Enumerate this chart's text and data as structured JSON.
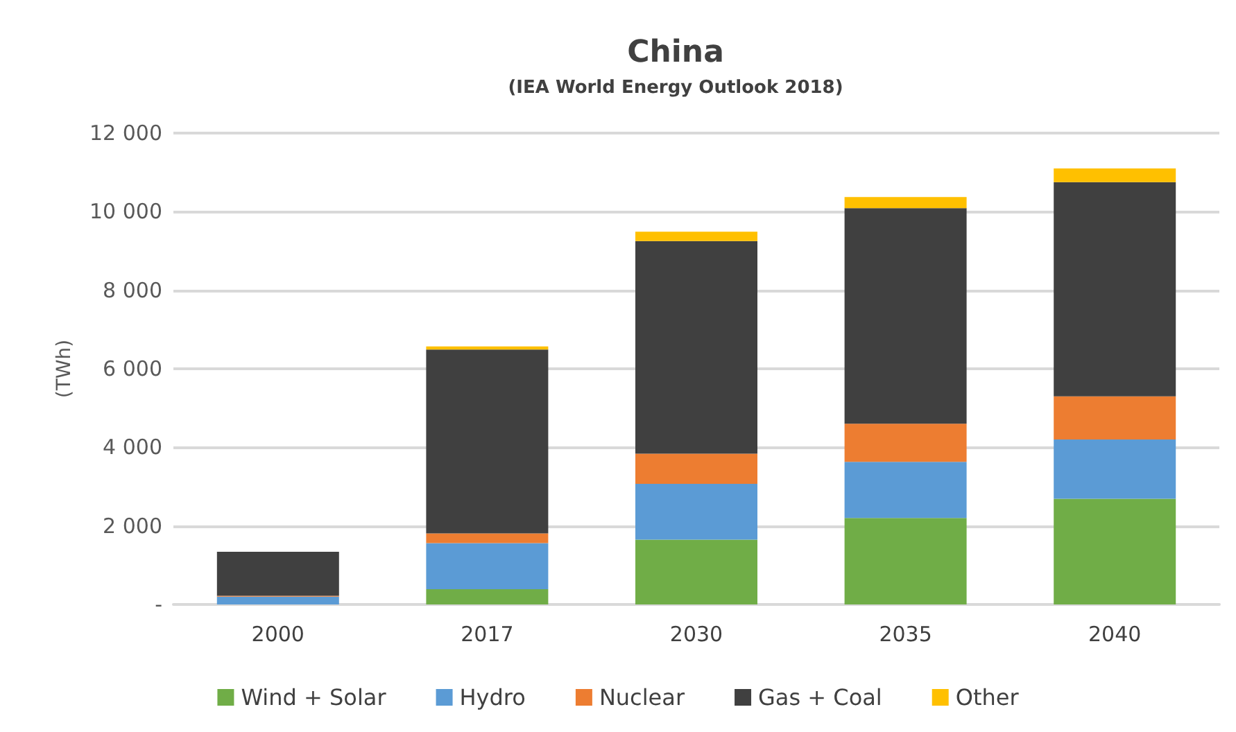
{
  "chart_data": {
    "type": "bar",
    "title": "China",
    "subtitle": "(IEA World Energy Outlook 2018)",
    "ylabel": "(TWh)",
    "categories": [
      "2000",
      "2017",
      "2030",
      "2035",
      "2040"
    ],
    "series": [
      {
        "name": "Wind + Solar",
        "color": "#70ad47",
        "values": [
          0,
          390,
          1650,
          2200,
          2690
        ]
      },
      {
        "name": "Hydro",
        "color": "#5b9bd5",
        "values": [
          200,
          1170,
          1420,
          1430,
          1510
        ]
      },
      {
        "name": "Nuclear",
        "color": "#ed7d31",
        "values": [
          20,
          250,
          770,
          970,
          1100
        ]
      },
      {
        "name": "Gas + Coal",
        "color": "#404040",
        "values": [
          1120,
          4680,
          5410,
          5490,
          5450
        ]
      },
      {
        "name": "Other",
        "color": "#ffc000",
        "values": [
          0,
          80,
          240,
          280,
          350
        ]
      }
    ],
    "stacked": true,
    "ylim": [
      0,
      12000
    ],
    "yticks": [
      {
        "value": 0,
        "label": "-"
      },
      {
        "value": 2000,
        "label": "2 000"
      },
      {
        "value": 4000,
        "label": "4 000"
      },
      {
        "value": 6000,
        "label": "6 000"
      },
      {
        "value": 8000,
        "label": "8 000"
      },
      {
        "value": 10000,
        "label": "10 000"
      },
      {
        "value": 12000,
        "label": "12 000"
      }
    ],
    "grid": "y",
    "legend": "bottom"
  }
}
